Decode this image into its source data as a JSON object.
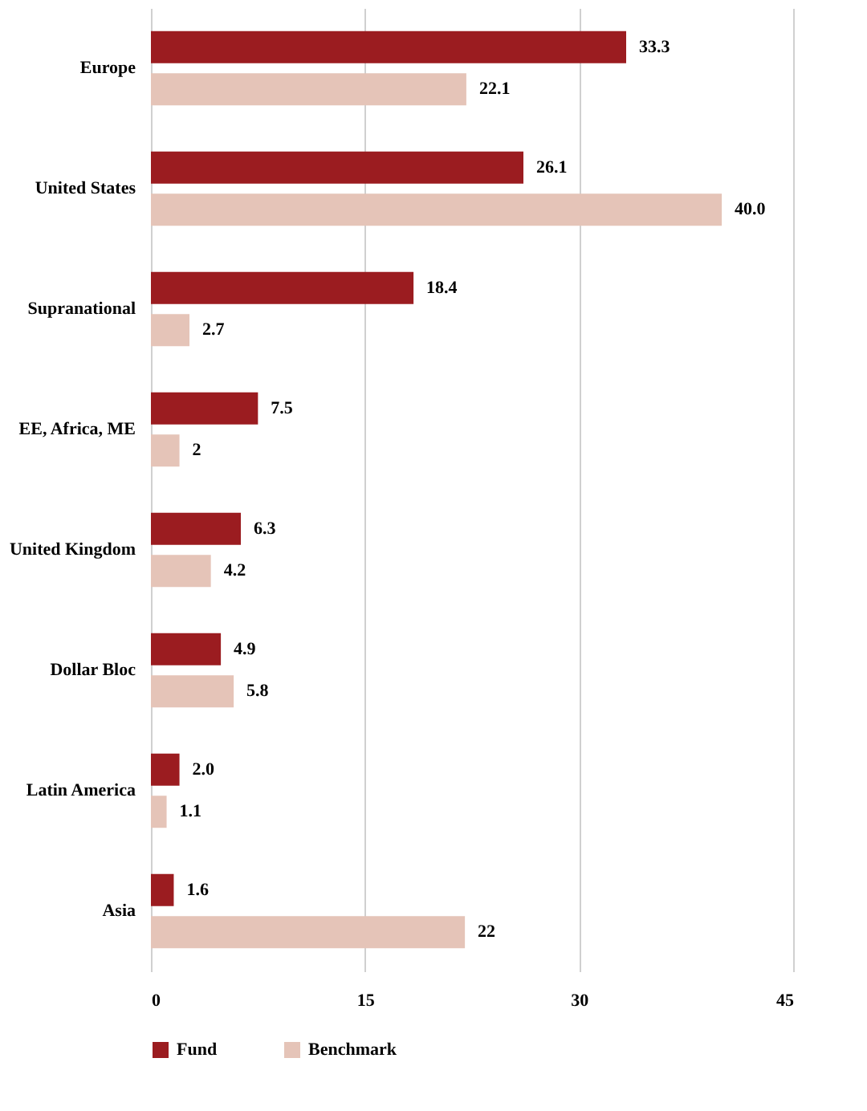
{
  "chart_data": {
    "type": "bar",
    "orientation": "horizontal",
    "categories": [
      "Europe",
      "United States",
      "Supranational",
      "EE, Africa, ME",
      "United Kingdom",
      "Dollar Bloc",
      "Latin America",
      "Asia"
    ],
    "series": [
      {
        "name": "Fund",
        "color": "#9b1c20",
        "values": [
          33.3,
          26.1,
          18.4,
          7.5,
          6.3,
          4.9,
          2.0,
          1.6
        ],
        "value_labels": [
          "33.3",
          "26.1",
          "18.4",
          "7.5",
          "6.3",
          "4.9",
          "2.0",
          "1.6"
        ]
      },
      {
        "name": "Benchmark",
        "color": "#e5c4b8",
        "values": [
          22.1,
          40.0,
          2.7,
          2,
          4.2,
          5.8,
          1.1,
          22
        ],
        "value_labels": [
          "22.1",
          "40.0",
          "2.7",
          "2",
          "4.2",
          "5.8",
          "1.1",
          "22"
        ]
      }
    ],
    "xlim": [
      0,
      45
    ],
    "xticks": [
      0,
      15,
      30,
      45
    ],
    "grid": "x",
    "legend": "bottom left"
  }
}
